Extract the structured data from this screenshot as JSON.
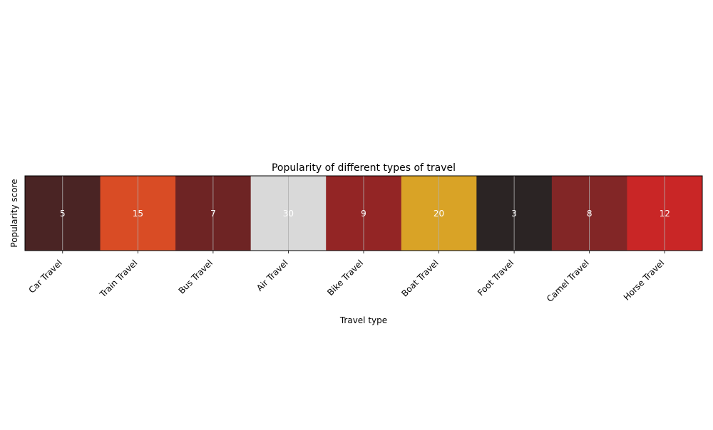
{
  "chart_data": {
    "type": "heatmap",
    "title": "Popularity of different types of travel",
    "xlabel": "Travel type",
    "ylabel": "Popularity score",
    "categories": [
      "Car Travel",
      "Train Travel",
      "Bus Travel",
      "Air Travel",
      "Bike Travel",
      "Boat Travel",
      "Foot Travel",
      "Camel Travel",
      "Horse Travel"
    ],
    "values": [
      5,
      15,
      7,
      30,
      9,
      20,
      3,
      8,
      12
    ],
    "cell_colors": [
      "#4a2424",
      "#d94c25",
      "#6e2424",
      "#d9d9d9",
      "#932525",
      "#d9a326",
      "#2b2424",
      "#822626",
      "#c92626"
    ],
    "grid": true
  }
}
